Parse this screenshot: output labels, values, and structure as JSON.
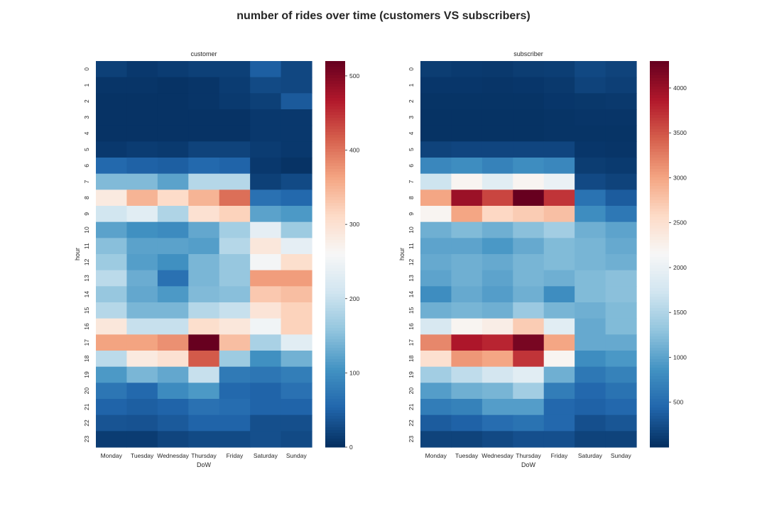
{
  "chart_data": {
    "type": "heatmap",
    "title": "number of rides over time (customers VS subscribers)",
    "colormap": "RdBu",
    "colormap_stops": [
      "#67001f",
      "#b2182b",
      "#d6604d",
      "#f4a582",
      "#fddbc7",
      "#f7f7f7",
      "#d1e5f0",
      "#92c5de",
      "#4393c3",
      "#2166ac",
      "#053061"
    ],
    "panels": [
      {
        "name": "customer",
        "xlabel": "DoW",
        "ylabel": "hour",
        "x": [
          "Monday",
          "Tuesday",
          "Wednesday",
          "Thursday",
          "Friday",
          "Saturday",
          "Sunday"
        ],
        "y": [
          "0",
          "1",
          "2",
          "3",
          "4",
          "5",
          "6",
          "7",
          "8",
          "9",
          "10",
          "11",
          "12",
          "13",
          "14",
          "15",
          "16",
          "17",
          "18",
          "19",
          "20",
          "21",
          "22",
          "23"
        ],
        "vmin": 0,
        "vmax": 520,
        "colorbar_ticks": [
          0,
          100,
          200,
          300,
          400,
          500
        ],
        "values": [
          [
            15,
            8,
            12,
            15,
            15,
            45,
            22
          ],
          [
            5,
            5,
            3,
            5,
            12,
            25,
            22
          ],
          [
            3,
            3,
            3,
            5,
            10,
            15,
            40
          ],
          [
            3,
            3,
            3,
            3,
            3,
            8,
            8
          ],
          [
            3,
            3,
            3,
            3,
            3,
            8,
            8
          ],
          [
            8,
            12,
            10,
            18,
            18,
            12,
            8
          ],
          [
            55,
            48,
            45,
            55,
            50,
            8,
            3
          ],
          [
            145,
            145,
            120,
            185,
            185,
            15,
            25
          ],
          [
            285,
            350,
            310,
            350,
            405,
            65,
            55
          ],
          [
            210,
            230,
            180,
            300,
            320,
            120,
            110
          ],
          [
            120,
            100,
            95,
            125,
            170,
            235,
            165
          ],
          [
            150,
            120,
            120,
            115,
            185,
            290,
            235
          ],
          [
            165,
            115,
            100,
            140,
            160,
            255,
            305
          ],
          [
            190,
            130,
            65,
            140,
            160,
            370,
            370
          ],
          [
            160,
            125,
            110,
            145,
            150,
            330,
            340
          ],
          [
            185,
            140,
            140,
            185,
            200,
            295,
            320
          ],
          [
            290,
            200,
            200,
            305,
            290,
            250,
            320
          ],
          [
            365,
            365,
            380,
            520,
            340,
            175,
            230
          ],
          [
            190,
            285,
            300,
            420,
            165,
            100,
            135
          ],
          [
            110,
            140,
            125,
            200,
            75,
            70,
            80
          ],
          [
            70,
            55,
            95,
            110,
            55,
            50,
            65
          ],
          [
            50,
            45,
            50,
            65,
            60,
            50,
            50
          ],
          [
            35,
            33,
            40,
            50,
            50,
            30,
            30
          ],
          [
            12,
            12,
            20,
            25,
            25,
            30,
            25
          ]
        ]
      },
      {
        "name": "subscriber",
        "xlabel": "DoW",
        "ylabel": "hour",
        "x": [
          "Monday",
          "Tuesday",
          "Wednesday",
          "Thursday",
          "Friday",
          "Saturday",
          "Sunday"
        ],
        "y": [
          "0",
          "1",
          "2",
          "3",
          "4",
          "5",
          "6",
          "7",
          "8",
          "9",
          "10",
          "11",
          "12",
          "13",
          "14",
          "15",
          "16",
          "17",
          "18",
          "19",
          "20",
          "21",
          "22",
          "23"
        ],
        "vmin": 0,
        "vmax": 4300,
        "colorbar_ticks": [
          500,
          1000,
          1500,
          2000,
          2500,
          3000,
          3500,
          4000
        ],
        "values": [
          [
            100,
            80,
            70,
            100,
            110,
            190,
            150
          ],
          [
            50,
            50,
            40,
            50,
            70,
            150,
            120
          ],
          [
            30,
            30,
            30,
            30,
            50,
            60,
            70
          ],
          [
            20,
            20,
            20,
            20,
            30,
            40,
            40
          ],
          [
            20,
            20,
            20,
            20,
            30,
            30,
            30
          ],
          [
            150,
            170,
            170,
            170,
            170,
            50,
            40
          ],
          [
            750,
            800,
            700,
            800,
            750,
            100,
            80
          ],
          [
            1700,
            2200,
            1900,
            2200,
            2000,
            200,
            150
          ],
          [
            3000,
            4000,
            3600,
            4300,
            3700,
            550,
            350
          ],
          [
            2200,
            3000,
            2600,
            2700,
            2800,
            800,
            600
          ],
          [
            1100,
            1200,
            1100,
            1250,
            1400,
            1100,
            1000
          ],
          [
            1000,
            1000,
            900,
            1050,
            1200,
            1150,
            1050
          ],
          [
            1050,
            1100,
            1050,
            1150,
            1200,
            1150,
            1100
          ],
          [
            1000,
            1100,
            1000,
            1150,
            1100,
            1200,
            1250
          ],
          [
            800,
            1050,
            950,
            1100,
            800,
            1200,
            1250
          ],
          [
            1100,
            1150,
            1100,
            1350,
            1150,
            1100,
            1200
          ],
          [
            1800,
            2200,
            2300,
            2700,
            1900,
            1050,
            1200
          ],
          [
            3200,
            3900,
            3800,
            4200,
            3000,
            1050,
            1050
          ],
          [
            2500,
            3100,
            3000,
            3700,
            2200,
            800,
            900
          ],
          [
            1400,
            1600,
            1750,
            1900,
            1100,
            600,
            700
          ],
          [
            950,
            1100,
            1150,
            1400,
            650,
            450,
            550
          ],
          [
            650,
            700,
            950,
            950,
            450,
            400,
            450
          ],
          [
            350,
            400,
            500,
            550,
            450,
            250,
            300
          ],
          [
            150,
            150,
            200,
            250,
            250,
            150,
            150
          ]
        ]
      }
    ]
  }
}
